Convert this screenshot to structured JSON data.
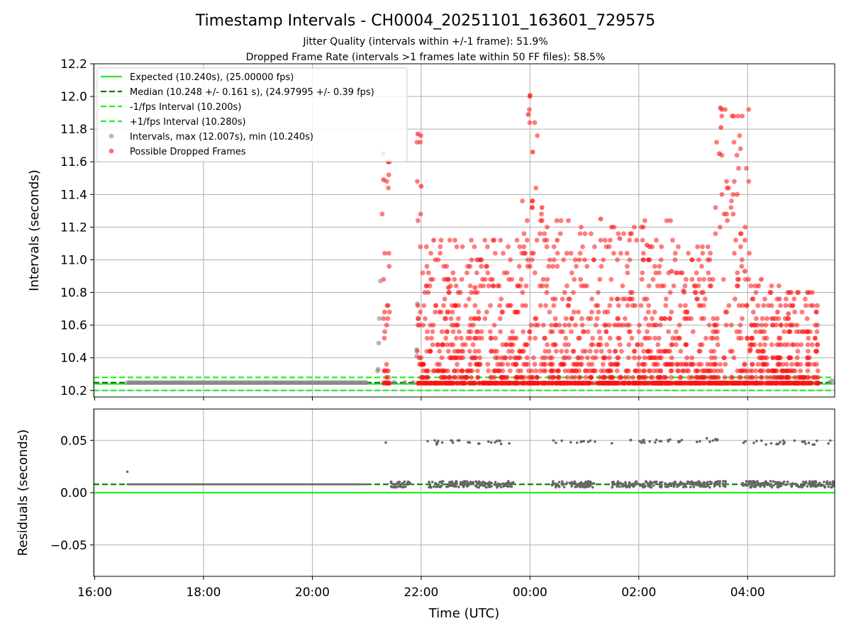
{
  "figure": {
    "title": "Timestamp Intervals - CH0004_20251101_163601_729575",
    "subtitle_lines": [
      "Jitter Quality (intervals within +/-1 frame): 51.9%",
      "Dropped Frame Rate (intervals >1 frames late within 50 FF files): 58.5%"
    ]
  },
  "colors": {
    "expected": "#22ee22",
    "median": "#117711",
    "fps_bounds": "#22ee22",
    "intervals": "#888888",
    "dropped": "#ff1111",
    "residuals": "#666666",
    "grid": "#b0b0b0"
  },
  "chart_data": [
    {
      "type": "scatter",
      "id": "intervals",
      "xlabel": "Time (UTC)",
      "ylabel": "Intervals (seconds)",
      "xlim_hours": [
        15.98,
        29.6
      ],
      "ylim": [
        10.16,
        12.2
      ],
      "y_ticks": [
        10.2,
        10.4,
        10.6,
        10.8,
        11.0,
        11.2,
        11.4,
        11.6,
        11.8,
        12.0,
        12.2
      ],
      "y_tick_labels": [
        "10.2",
        "10.4",
        "10.6",
        "10.8",
        "11.0",
        "11.2",
        "11.4",
        "11.6",
        "11.8",
        "12.0",
        "12.2"
      ],
      "grid": "horizontal",
      "legend_position": "upper left",
      "legend": [
        {
          "label": "Expected (10.240s), (25.00000 fps)",
          "kind": "solid-line",
          "color_key": "expected"
        },
        {
          "label": "Median (10.248 +/- 0.161 s), (24.97995 +/- 0.39 fps)",
          "kind": "dashed-line",
          "color_key": "median"
        },
        {
          "label": "-1/fps Interval (10.200s)",
          "kind": "dashed-line",
          "color_key": "fps_bounds"
        },
        {
          "label": "+1/fps Interval (10.280s)",
          "kind": "dashed-line",
          "color_key": "fps_bounds"
        },
        {
          "label": "Intervals, max (12.007s), min (10.240s)",
          "kind": "marker",
          "color_key": "intervals"
        },
        {
          "label": "Possible Dropped Frames",
          "kind": "marker",
          "color_key": "dropped"
        }
      ],
      "reference_lines": [
        {
          "name": "Expected",
          "y": 10.24,
          "style": "solid",
          "color_key": "expected"
        },
        {
          "name": "Median",
          "y": 10.248,
          "style": "dashed",
          "color_key": "median"
        },
        {
          "name": "-1/fps Interval",
          "y": 10.2,
          "style": "dashed",
          "color_key": "fps_bounds"
        },
        {
          "name": "+1/fps Interval",
          "y": 10.28,
          "style": "dashed",
          "color_key": "fps_bounds"
        }
      ],
      "series": [
        {
          "name": "Intervals",
          "color_key": "intervals",
          "baseline": {
            "x_hours": [
              16.6,
              21.0
            ],
            "y": 10.248
          },
          "points": [
            {
              "x": 21.2,
              "y": 10.32
            },
            {
              "x": 21.21,
              "y": 10.33
            },
            {
              "x": 21.22,
              "y": 10.49
            },
            {
              "x": 21.23,
              "y": 10.64
            },
            {
              "x": 21.25,
              "y": 10.87
            },
            {
              "x": 21.35,
              "y": 10.25
            },
            {
              "x": 21.5,
              "y": 10.25
            },
            {
              "x": 21.7,
              "y": 10.25
            },
            {
              "x": 21.85,
              "y": 10.25
            },
            {
              "x": 21.92,
              "y": 10.41
            },
            {
              "x": 21.92,
              "y": 10.45
            },
            {
              "x": 21.93,
              "y": 10.73
            },
            {
              "x": 29.5,
              "y": 10.25
            },
            {
              "x": 29.55,
              "y": 10.26
            }
          ]
        },
        {
          "name": "Possible Dropped Frames",
          "color_key": "dropped",
          "segments": [
            {
              "x_hours": [
                21.28,
                21.42
              ],
              "peak": 11.65
            },
            {
              "x_hours": [
                21.92,
                22.02
              ],
              "peak": 11.77
            },
            {
              "x_hours": [
                22.02,
                23.85
              ],
              "peak": 11.12
            },
            {
              "x_hours": [
                23.85,
                24.25
              ],
              "peak": 12.007
            },
            {
              "x_hours": [
                24.25,
                26.75
              ],
              "peak": 11.25
            },
            {
              "x_hours": [
                26.75,
                27.4
              ],
              "peak": 11.1
            },
            {
              "x_hours": [
                27.4,
                28.05
              ],
              "peak": 11.93
            },
            {
              "x_hours": [
                28.05,
                29.3
              ],
              "peak": 10.88
            }
          ],
          "points": [
            {
              "x": 21.3,
              "y": 11.65
            },
            {
              "x": 21.31,
              "y": 11.49
            },
            {
              "x": 22.0,
              "y": 11.45
            },
            {
              "x": 21.94,
              "y": 11.77
            },
            {
              "x": 22.23,
              "y": 11.12
            },
            {
              "x": 22.5,
              "y": 10.83
            },
            {
              "x": 22.99,
              "y": 10.83
            },
            {
              "x": 24.0,
              "y": 12.007
            },
            {
              "x": 23.97,
              "y": 11.89
            },
            {
              "x": 24.05,
              "y": 11.66
            },
            {
              "x": 24.22,
              "y": 11.32
            },
            {
              "x": 24.5,
              "y": 11.12
            },
            {
              "x": 25.3,
              "y": 11.25
            },
            {
              "x": 25.65,
              "y": 11.13
            },
            {
              "x": 25.5,
              "y": 11.2
            },
            {
              "x": 26.15,
              "y": 11.09
            },
            {
              "x": 26.2,
              "y": 11.08
            },
            {
              "x": 26.6,
              "y": 10.93
            },
            {
              "x": 26.82,
              "y": 10.81
            },
            {
              "x": 27.5,
              "y": 11.93
            },
            {
              "x": 27.51,
              "y": 11.81
            },
            {
              "x": 27.48,
              "y": 11.65
            },
            {
              "x": 27.95,
              "y": 10.93
            },
            {
              "x": 28.2,
              "y": 10.84
            },
            {
              "x": 28.25,
              "y": 10.88
            },
            {
              "x": 28.55,
              "y": 10.68
            },
            {
              "x": 28.75,
              "y": 10.67
            },
            {
              "x": 29.1,
              "y": 10.8
            },
            {
              "x": 28.05,
              "y": 10.45
            }
          ]
        }
      ]
    },
    {
      "type": "scatter",
      "id": "residuals",
      "xlabel": "Time (UTC)",
      "ylabel": "Residuals (seconds)",
      "xlim_hours": [
        15.98,
        29.6
      ],
      "ylim": [
        -0.08,
        0.08
      ],
      "x_ticks": [
        16,
        18,
        20,
        22,
        24,
        26,
        28
      ],
      "x_tick_labels": [
        "16:00",
        "18:00",
        "20:00",
        "22:00",
        "00:00",
        "02:00",
        "04:00"
      ],
      "y_ticks": [
        -0.05,
        0.0,
        0.05
      ],
      "y_tick_labels": [
        "−0.05",
        "0.00",
        "0.05"
      ],
      "grid": "both",
      "reference_lines": [
        {
          "name": "Zero",
          "y": 0.0,
          "style": "solid",
          "color_key": "expected"
        },
        {
          "name": "Median residual",
          "y": 0.008,
          "style": "dashed",
          "color_key": "median"
        }
      ],
      "series": [
        {
          "name": "Residuals",
          "color_key": "residuals",
          "baseline": {
            "x_hours": [
              16.6,
              21.0
            ],
            "y": 0.008
          },
          "segments": [
            {
              "x_hours": [
                21.4,
                21.8
              ],
              "y_low": 0.008,
              "y_high": 0.008
            },
            {
              "x_hours": [
                22.1,
                23.7
              ],
              "y_low": 0.008,
              "y_high": 0.048
            },
            {
              "x_hours": [
                24.4,
                25.2
              ],
              "y_low": 0.008,
              "y_high": 0.049
            },
            {
              "x_hours": [
                25.5,
                26.5
              ],
              "y_low": 0.008,
              "y_high": 0.049
            },
            {
              "x_hours": [
                26.5,
                27.6
              ],
              "y_low": 0.008,
              "y_high": 0.05
            },
            {
              "x_hours": [
                27.9,
                29.6
              ],
              "y_low": 0.008,
              "y_high": 0.048
            }
          ],
          "points": [
            {
              "x": 16.6,
              "y": 0.02
            },
            {
              "x": 21.35,
              "y": 0.048
            },
            {
              "x": 22.25,
              "y": 0.05
            },
            {
              "x": 22.55,
              "y": 0.05
            },
            {
              "x": 27.25,
              "y": 0.052
            },
            {
              "x": 29.2,
              "y": 0.046
            }
          ]
        }
      ]
    }
  ]
}
